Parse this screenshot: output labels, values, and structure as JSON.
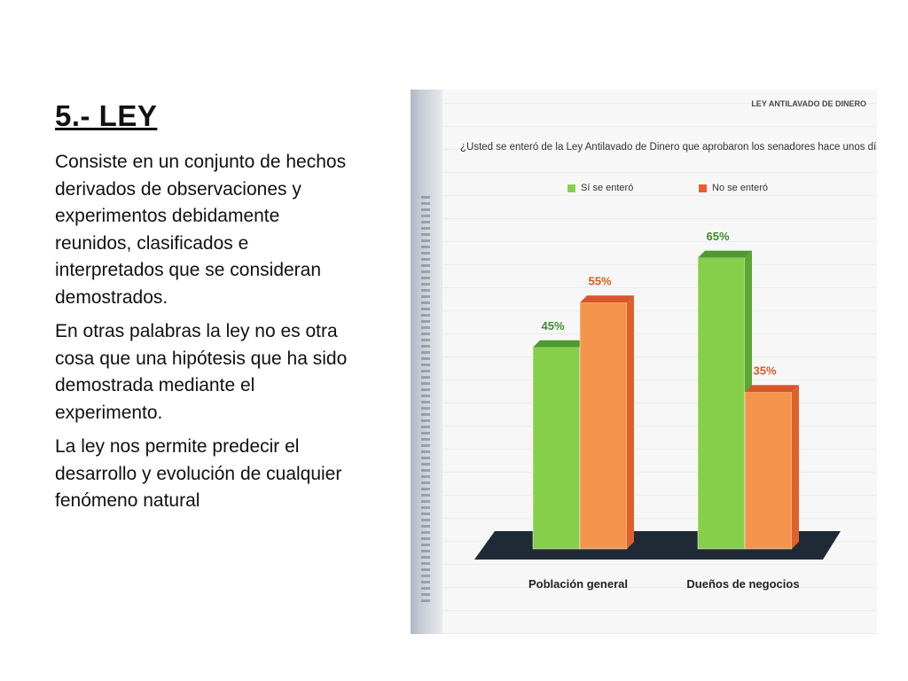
{
  "slide": {
    "title": "5.- LEY",
    "paragraphs": [
      "Consiste en un conjunto de hechos derivados de observaciones y experimentos debidamente reunidos, clasificados e interpretados que se consideran demostrados.",
      "En otras palabras la ley no es otra cosa que una hipótesis que ha sido demostrada mediante el experimento.",
      "La ley nos permite predecir el desarrollo y evolución de cualquier fenómeno natural"
    ]
  },
  "chart_header": {
    "brand": "LEY ANTILAVADO DE DINERO",
    "question": "¿Usted se enteró de la Ley Antilavado de Dinero que aprobaron los senadores hace unos días?"
  },
  "chart_data": {
    "type": "bar",
    "title": "",
    "categories": [
      "Población general",
      "Dueños de negocios"
    ],
    "series": [
      {
        "name": "Sí se enteró",
        "values": [
          45,
          65
        ],
        "labels": [
          "45%",
          "65%"
        ],
        "color": "#86cf4a",
        "top_color": "#4f9a2e",
        "side_color": "#5aa834"
      },
      {
        "name": "No se enteró",
        "values": [
          55,
          35
        ],
        "labels": [
          "55%",
          "35%"
        ],
        "color": "#f5944c",
        "top_color": "#d8552a",
        "side_color": "#e0602c"
      }
    ],
    "ylim": [
      0,
      100
    ],
    "grid": false,
    "legend": "top-center",
    "label_colors": [
      "#3f8c2a",
      "#d85a24"
    ]
  }
}
